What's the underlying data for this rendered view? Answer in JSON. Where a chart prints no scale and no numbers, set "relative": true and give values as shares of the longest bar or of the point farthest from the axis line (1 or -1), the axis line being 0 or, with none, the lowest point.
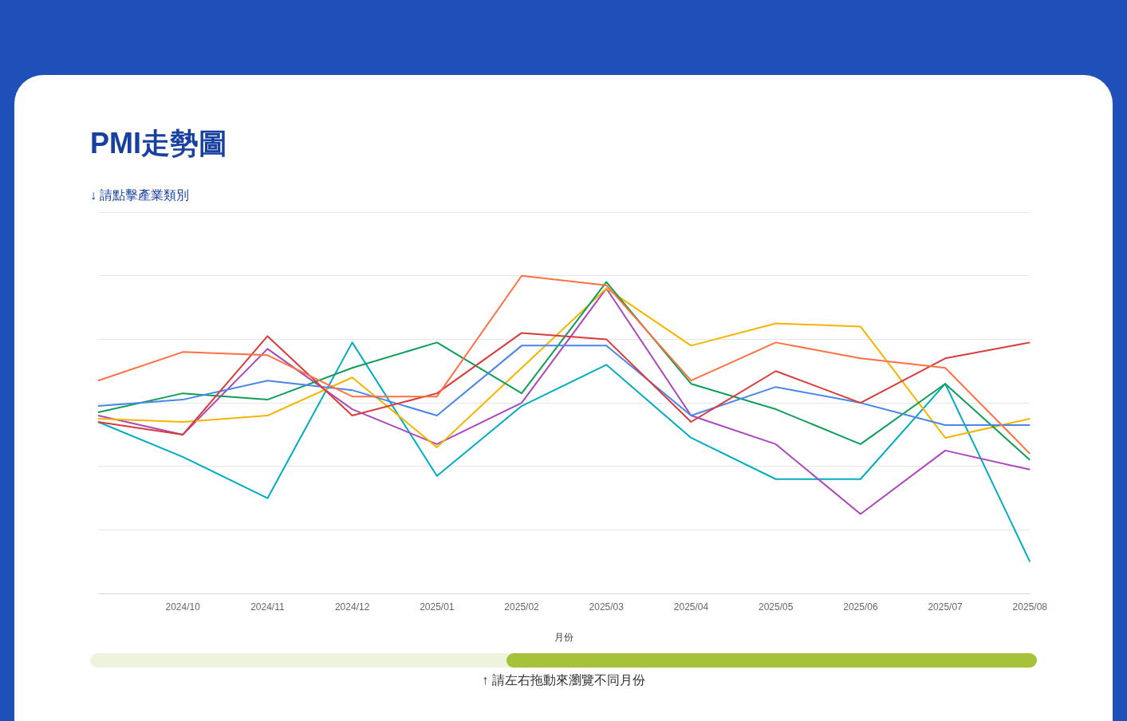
{
  "chart_data": {
    "type": "line",
    "title": "PMI走勢圖",
    "subtitle": "↓ 請點擊產業類別",
    "xlabel": "月份",
    "annotations": [
      "↑ 請左右拖動來瀏覽不同月份"
    ],
    "relative": true,
    "grid": "y",
    "marker": "none",
    "line_style": "solid",
    "categories": [
      null,
      "2024/10",
      "2024/11",
      "2024/12",
      "2025/01",
      "2025/02",
      "2025/03",
      "2025/04",
      "2025/05",
      "2025/06",
      "2025/07",
      "2025/08"
    ],
    "series": [
      {
        "color": "#ff7043",
        "values": [
          0.67,
          0.76,
          0.75,
          0.62,
          0.62,
          1,
          0.97,
          0.67,
          0.79,
          0.74,
          0.71,
          0.44
        ]
      },
      {
        "color": "#d63c3c",
        "values": [
          0.54,
          0.5,
          0.81,
          0.56,
          0.63,
          0.82,
          0.8,
          0.54,
          0.7,
          0.6,
          0.74,
          0.79
        ]
      },
      {
        "color": "#4a86e8",
        "values": [
          0.59,
          0.61,
          0.67,
          0.64,
          0.56,
          0.78,
          0.78,
          0.56,
          0.65,
          0.6,
          0.53,
          0.53
        ]
      },
      {
        "color": "#0f9d58",
        "values": [
          0.57,
          0.63,
          0.61,
          0.71,
          0.79,
          0.63,
          0.98,
          0.66,
          0.58,
          0.47,
          0.66,
          0.42
        ]
      },
      {
        "color": "#f4b400",
        "values": [
          0.55,
          0.54,
          0.56,
          0.68,
          0.46,
          0.71,
          0.96,
          0.78,
          0.85,
          0.84,
          0.49,
          0.55
        ]
      },
      {
        "color": "#ab47bc",
        "values": [
          0.56,
          0.5,
          0.77,
          0.58,
          0.47,
          0.6,
          0.96,
          0.56,
          0.47,
          0.25,
          0.45,
          0.39
        ]
      },
      {
        "color": "#00acc1",
        "values": [
          0.54,
          0.43,
          0.3,
          0.79,
          0.37,
          0.59,
          0.72,
          0.49,
          0.36,
          0.36,
          0.66,
          0.1
        ]
      }
    ]
  }
}
